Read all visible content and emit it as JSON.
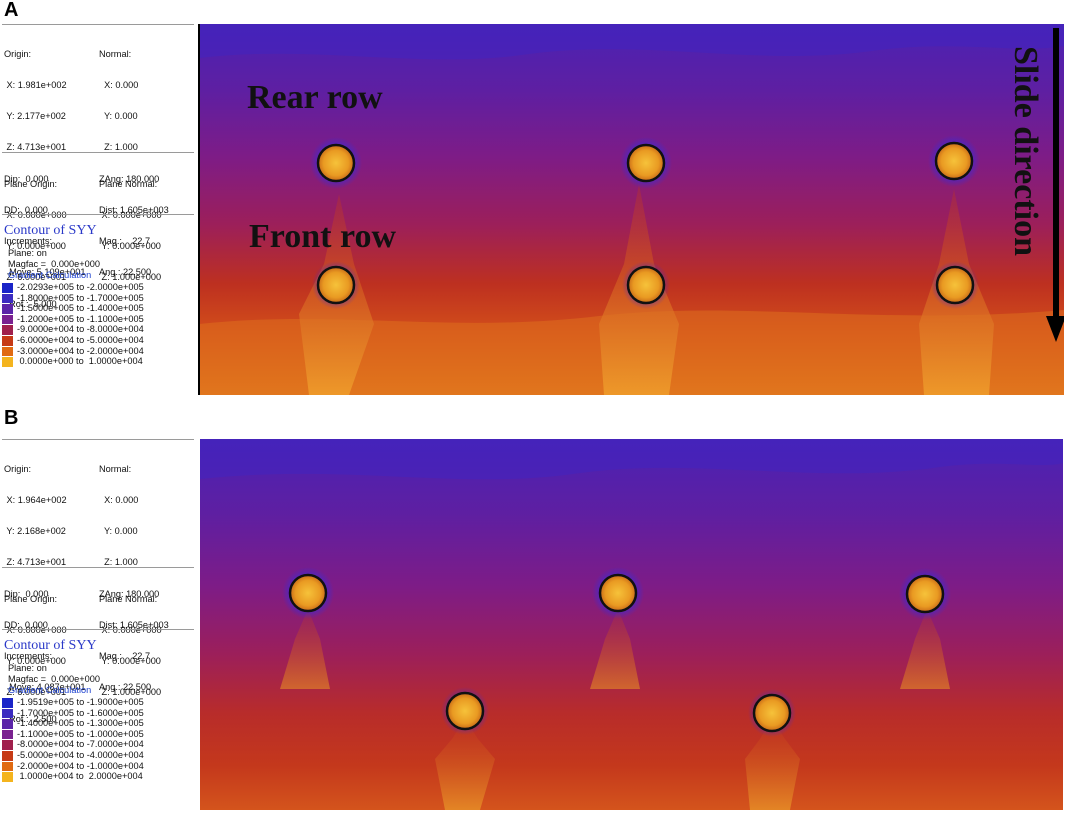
{
  "panels": [
    {
      "letter": "A",
      "info": {
        "block1": {
          "left": [
            "Origin:",
            " X: 1.981e+002",
            " Y: 2.177e+002",
            " Z: 4.713e+001",
            "Dip:  0.000",
            "DD:  0.000",
            "Increments:",
            "  Move: 5.109e+001",
            "  Rot.:  5.000"
          ],
          "right": [
            "Normal:",
            "  X: 0.000",
            "  Y: 0.000",
            "  Z: 1.000",
            "ZAng: 180.000",
            "Dist: 1.605e+003",
            "Mag.:    22.7",
            "Ang.: 22.500"
          ]
        },
        "block2": {
          "left": [
            "Plane Origin:",
            " X: 0.000e+000",
            " Y: 0.000e+000",
            " Z: 6.000e+001"
          ],
          "right": [
            "Plane Normal:",
            " X: 0.000e+000",
            " Y: 0.000e+000",
            " Z: 1.000e+000"
          ]
        },
        "contour_title": "Contour of SYY",
        "plane": "Plane: on",
        "magfac": "Magfac =  0.000e+000",
        "gradient": "Gradient Calculation"
      },
      "legend": [
        {
          "text": "-2.0293e+005 to -2.0000e+005",
          "color": "#1a24c8"
        },
        {
          "text": "-1.8000e+005 to -1.7000e+005",
          "color": "#3b2bc0"
        },
        {
          "text": "-1.5000e+005 to -1.4000e+005",
          "color": "#5b25a8"
        },
        {
          "text": "-1.2000e+005 to -1.1000e+005",
          "color": "#7a2190"
        },
        {
          "text": "-9.0000e+004 to -8.0000e+004",
          "color": "#a0204c"
        },
        {
          "text": "-6.0000e+004 to -5.0000e+004",
          "color": "#c63a16"
        },
        {
          "text": "-3.0000e+004 to -2.0000e+004",
          "color": "#e06a12"
        },
        {
          "text": " 0.0000e+000 to  1.0000e+004",
          "color": "#f4b41e"
        }
      ],
      "overlay": {
        "rear_row": "Rear row",
        "front_row": "Front row",
        "slide_direction": "Slide direction"
      }
    },
    {
      "letter": "B",
      "info": {
        "block1": {
          "left": [
            "Origin:",
            " X: 1.964e+002",
            " Y: 2.168e+002",
            " Z: 4.713e+001",
            "Dip:  0.000",
            "DD:  0.000",
            "Increments:",
            "  Move: 4.087e+001",
            "  Rot.:  2.500"
          ],
          "right": [
            "Normal:",
            "  X: 0.000",
            "  Y: 0.000",
            "  Z: 1.000",
            "ZAng: 180.000",
            "Dist: 1.605e+003",
            "Mag.:    22.7",
            "Ang.: 22.500"
          ]
        },
        "block2": {
          "left": [
            "Plane Origin:",
            " X: 0.000e+000",
            " Y: 0.000e+000",
            " Z: 6.000e+001"
          ],
          "right": [
            "Plane Normal:",
            " X: 0.000e+000",
            " Y: 0.000e+000",
            " Z: 1.000e+000"
          ]
        },
        "contour_title": "Contour of SYY",
        "plane": "Plane: on",
        "magfac": "Magfac =  0.000e+000",
        "gradient": "Gradient Calculation"
      },
      "legend": [
        {
          "text": "-1.9519e+005 to -1.9000e+005",
          "color": "#1a24c8"
        },
        {
          "text": "-1.7000e+005 to -1.6000e+005",
          "color": "#3b2bc0"
        },
        {
          "text": "-1.4000e+005 to -1.3000e+005",
          "color": "#5b25a8"
        },
        {
          "text": "-1.1000e+005 to -1.0000e+005",
          "color": "#7a2190"
        },
        {
          "text": "-8.0000e+004 to -7.0000e+004",
          "color": "#a0204c"
        },
        {
          "text": "-5.0000e+004 to -4.0000e+004",
          "color": "#c63a16"
        },
        {
          "text": "-2.0000e+004 to -1.0000e+004",
          "color": "#e06a12"
        },
        {
          "text": " 1.0000e+004 to  2.0000e+004",
          "color": "#f4b41e"
        }
      ]
    }
  ]
}
